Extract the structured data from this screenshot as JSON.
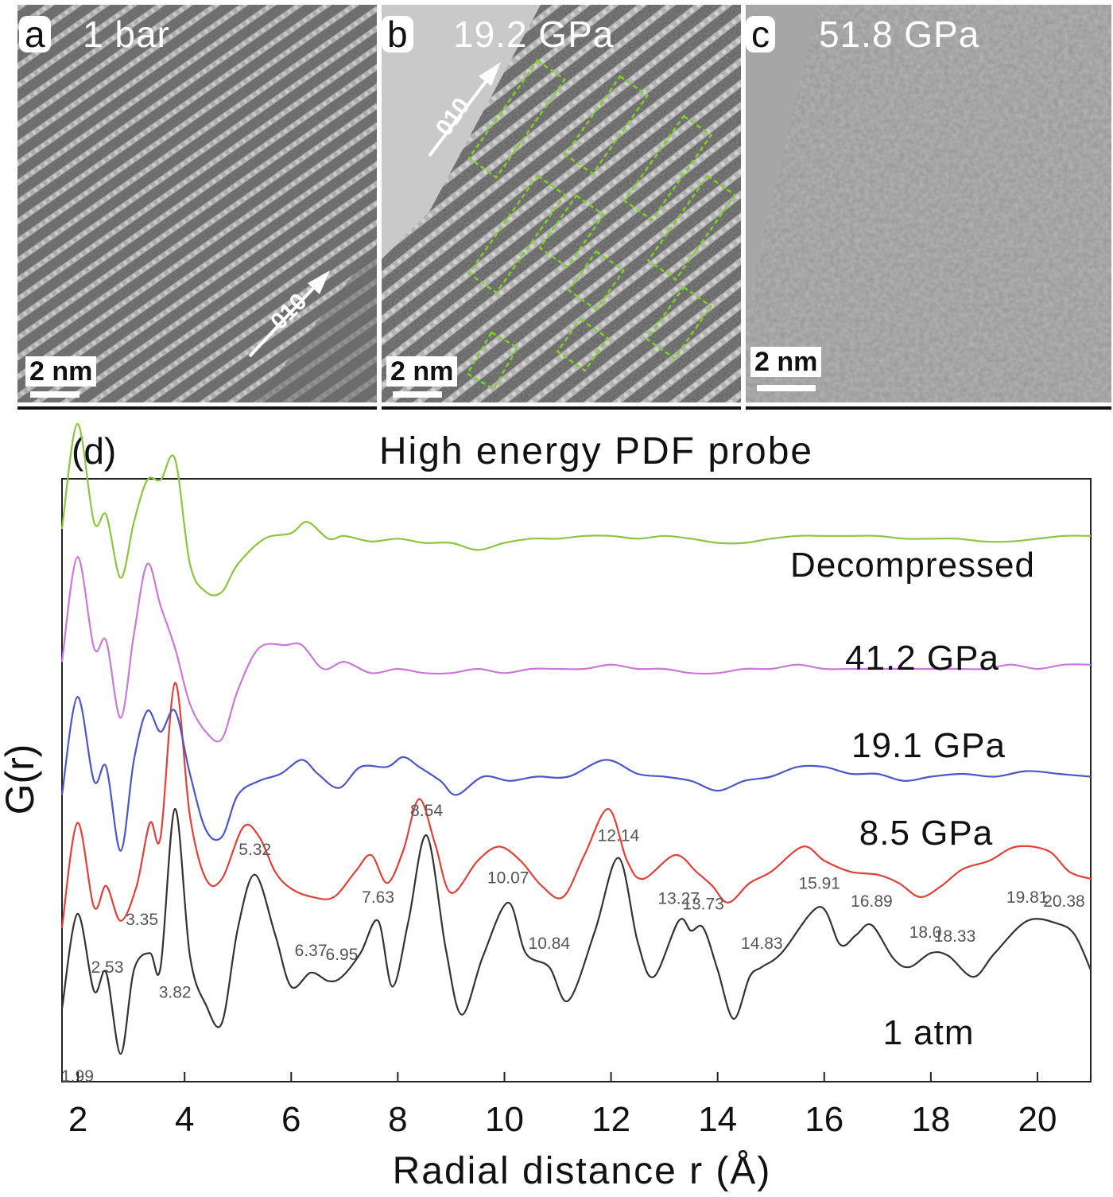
{
  "figure": {
    "panels": [
      {
        "id": "a",
        "condition": "1 bar",
        "scale_bar": "2 nm",
        "direction_label": "010"
      },
      {
        "id": "b",
        "condition": "19.2 GPa",
        "scale_bar": "2 nm",
        "direction_label": "010"
      },
      {
        "id": "c",
        "condition": "51.8 GPa",
        "scale_bar": "2 nm"
      }
    ],
    "colors": {
      "decompressed": "#8cc540",
      "p41_2": "#c87ad8",
      "p19_1": "#4b56c8",
      "p8_5": "#e0403a",
      "atm1": "#333333",
      "boxes": "#7ed321"
    }
  },
  "chart_data": {
    "type": "line",
    "panel_label": "(d)",
    "title": "High energy PDF probe",
    "xlabel": "Radial distance r (Å)",
    "ylabel": "G(r)",
    "xlim": [
      1.7,
      21.0
    ],
    "xticks": [
      "2",
      "4",
      "6",
      "8",
      "10",
      "12",
      "14",
      "16",
      "18",
      "20"
    ],
    "series": [
      {
        "name": "1 atm",
        "points": [
          [
            1.7,
            0.32
          ],
          [
            1.99,
            1.0
          ],
          [
            2.3,
            0.45
          ],
          [
            2.53,
            0.58
          ],
          [
            2.8,
            0.0
          ],
          [
            3.05,
            0.6
          ],
          [
            3.35,
            0.72
          ],
          [
            3.55,
            0.62
          ],
          [
            3.82,
            1.75
          ],
          [
            4.1,
            0.7
          ],
          [
            4.4,
            0.35
          ],
          [
            4.7,
            0.22
          ],
          [
            5.0,
            0.9
          ],
          [
            5.32,
            1.28
          ],
          [
            5.7,
            0.85
          ],
          [
            6.0,
            0.48
          ],
          [
            6.37,
            0.58
          ],
          [
            6.7,
            0.52
          ],
          [
            6.95,
            0.55
          ],
          [
            7.3,
            0.72
          ],
          [
            7.63,
            0.95
          ],
          [
            7.9,
            0.48
          ],
          [
            8.2,
            0.95
          ],
          [
            8.54,
            1.56
          ],
          [
            8.9,
            0.75
          ],
          [
            9.2,
            0.28
          ],
          [
            9.6,
            0.7
          ],
          [
            10.07,
            1.08
          ],
          [
            10.4,
            0.72
          ],
          [
            10.84,
            0.62
          ],
          [
            11.2,
            0.38
          ],
          [
            11.7,
            0.88
          ],
          [
            12.14,
            1.4
          ],
          [
            12.5,
            0.8
          ],
          [
            12.8,
            0.55
          ],
          [
            13.27,
            0.95
          ],
          [
            13.5,
            0.88
          ],
          [
            13.73,
            0.9
          ],
          [
            14.0,
            0.6
          ],
          [
            14.3,
            0.25
          ],
          [
            14.6,
            0.55
          ],
          [
            14.83,
            0.62
          ],
          [
            15.2,
            0.72
          ],
          [
            15.91,
            1.05
          ],
          [
            16.3,
            0.78
          ],
          [
            16.6,
            0.85
          ],
          [
            16.89,
            0.92
          ],
          [
            17.3,
            0.68
          ],
          [
            17.6,
            0.62
          ],
          [
            18.0,
            0.72
          ],
          [
            18.33,
            0.7
          ],
          [
            18.8,
            0.55
          ],
          [
            19.2,
            0.72
          ],
          [
            19.81,
            0.95
          ],
          [
            20.38,
            0.93
          ],
          [
            20.7,
            0.85
          ],
          [
            21.0,
            0.6
          ]
        ],
        "peak_labels": [
          {
            "text": "1.99",
            "x": 1.99,
            "y": -0.2
          },
          {
            "text": "2.53",
            "x": 2.55,
            "y": 0.58
          },
          {
            "text": "3.35",
            "x": 3.2,
            "y": 0.92
          },
          {
            "text": "3.82",
            "x": 3.82,
            "y": 0.4
          },
          {
            "text": "5.32",
            "x": 5.32,
            "y": 1.42
          },
          {
            "text": "6.37",
            "x": 6.37,
            "y": 0.7
          },
          {
            "text": "6.95",
            "x": 6.95,
            "y": 0.67
          },
          {
            "text": "7.63",
            "x": 7.63,
            "y": 1.08
          },
          {
            "text": "8.54",
            "x": 8.54,
            "y": 1.7
          },
          {
            "text": "10.07",
            "x": 10.07,
            "y": 1.22
          },
          {
            "text": "10.84",
            "x": 10.84,
            "y": 0.75
          },
          {
            "text": "12.14",
            "x": 12.14,
            "y": 1.52
          },
          {
            "text": "13.27",
            "x": 13.27,
            "y": 1.07
          },
          {
            "text": "13.73",
            "x": 13.73,
            "y": 1.03
          },
          {
            "text": "14.83",
            "x": 14.83,
            "y": 0.75
          },
          {
            "text": "15.91",
            "x": 15.91,
            "y": 1.18
          },
          {
            "text": "16.89",
            "x": 16.89,
            "y": 1.05
          },
          {
            "text": "18.0",
            "x": 17.9,
            "y": 0.83
          },
          {
            "text": "18.33",
            "x": 18.45,
            "y": 0.8
          },
          {
            "text": "19.81",
            "x": 19.81,
            "y": 1.08
          },
          {
            "text": "20.38",
            "x": 20.5,
            "y": 1.05
          }
        ]
      },
      {
        "name": "8.5 GPa",
        "points": [
          [
            1.7,
            0.9
          ],
          [
            1.99,
            1.65
          ],
          [
            2.3,
            1.05
          ],
          [
            2.53,
            1.2
          ],
          [
            2.8,
            0.95
          ],
          [
            3.1,
            1.2
          ],
          [
            3.35,
            1.65
          ],
          [
            3.55,
            1.55
          ],
          [
            3.82,
            2.65
          ],
          [
            4.1,
            1.7
          ],
          [
            4.4,
            1.25
          ],
          [
            4.7,
            1.25
          ],
          [
            5.1,
            1.62
          ],
          [
            5.4,
            1.55
          ],
          [
            5.7,
            1.3
          ],
          [
            6.0,
            1.18
          ],
          [
            6.4,
            1.12
          ],
          [
            6.8,
            1.12
          ],
          [
            7.2,
            1.3
          ],
          [
            7.5,
            1.42
          ],
          [
            7.8,
            1.22
          ],
          [
            8.1,
            1.45
          ],
          [
            8.4,
            1.82
          ],
          [
            8.7,
            1.5
          ],
          [
            9.0,
            1.15
          ],
          [
            9.5,
            1.38
          ],
          [
            9.9,
            1.48
          ],
          [
            10.3,
            1.38
          ],
          [
            10.7,
            1.2
          ],
          [
            11.1,
            1.12
          ],
          [
            11.5,
            1.42
          ],
          [
            11.95,
            1.75
          ],
          [
            12.3,
            1.38
          ],
          [
            12.6,
            1.25
          ],
          [
            13.2,
            1.42
          ],
          [
            13.6,
            1.3
          ],
          [
            13.9,
            1.2
          ],
          [
            14.2,
            1.08
          ],
          [
            14.6,
            1.22
          ],
          [
            15.0,
            1.3
          ],
          [
            15.6,
            1.48
          ],
          [
            16.0,
            1.38
          ],
          [
            16.5,
            1.3
          ],
          [
            17.0,
            1.28
          ],
          [
            17.4,
            1.22
          ],
          [
            17.8,
            1.12
          ],
          [
            18.2,
            1.2
          ],
          [
            18.6,
            1.32
          ],
          [
            19.1,
            1.38
          ],
          [
            19.6,
            1.48
          ],
          [
            20.2,
            1.45
          ],
          [
            20.6,
            1.3
          ],
          [
            21.0,
            1.25
          ]
        ]
      },
      {
        "name": "19.1 GPa",
        "points": [
          [
            1.7,
            1.85
          ],
          [
            1.99,
            2.55
          ],
          [
            2.3,
            1.95
          ],
          [
            2.53,
            2.05
          ],
          [
            2.8,
            1.45
          ],
          [
            3.05,
            2.1
          ],
          [
            3.3,
            2.45
          ],
          [
            3.55,
            2.3
          ],
          [
            3.82,
            2.45
          ],
          [
            4.1,
            2.0
          ],
          [
            4.4,
            1.6
          ],
          [
            4.7,
            1.55
          ],
          [
            5.0,
            1.85
          ],
          [
            5.4,
            1.95
          ],
          [
            5.8,
            2.0
          ],
          [
            6.2,
            2.1
          ],
          [
            6.5,
            2.0
          ],
          [
            6.9,
            1.9
          ],
          [
            7.3,
            2.05
          ],
          [
            7.8,
            2.05
          ],
          [
            8.1,
            2.12
          ],
          [
            8.4,
            2.05
          ],
          [
            8.8,
            1.95
          ],
          [
            9.1,
            1.85
          ],
          [
            9.6,
            1.98
          ],
          [
            10.1,
            1.95
          ],
          [
            10.6,
            1.98
          ],
          [
            11.2,
            1.98
          ],
          [
            11.9,
            2.1
          ],
          [
            12.5,
            2.0
          ],
          [
            13.0,
            1.98
          ],
          [
            13.5,
            1.95
          ],
          [
            14.0,
            1.88
          ],
          [
            14.5,
            1.95
          ],
          [
            15.0,
            1.98
          ],
          [
            15.5,
            2.05
          ],
          [
            16.0,
            2.05
          ],
          [
            16.5,
            2.0
          ],
          [
            17.0,
            2.0
          ],
          [
            17.5,
            1.95
          ],
          [
            18.0,
            1.98
          ],
          [
            18.6,
            2.0
          ],
          [
            19.2,
            1.98
          ],
          [
            19.8,
            2.02
          ],
          [
            20.4,
            2.0
          ],
          [
            21.0,
            1.98
          ]
        ]
      },
      {
        "name": "41.2 GPa",
        "points": [
          [
            1.7,
            2.8
          ],
          [
            1.99,
            3.55
          ],
          [
            2.3,
            2.9
          ],
          [
            2.53,
            2.95
          ],
          [
            2.8,
            2.4
          ],
          [
            3.05,
            3.0
          ],
          [
            3.3,
            3.5
          ],
          [
            3.55,
            3.2
          ],
          [
            3.82,
            2.9
          ],
          [
            4.1,
            2.5
          ],
          [
            4.4,
            2.3
          ],
          [
            4.7,
            2.25
          ],
          [
            5.0,
            2.6
          ],
          [
            5.4,
            2.9
          ],
          [
            5.9,
            2.92
          ],
          [
            6.2,
            2.92
          ],
          [
            6.6,
            2.75
          ],
          [
            7.0,
            2.8
          ],
          [
            7.5,
            2.72
          ],
          [
            8.0,
            2.75
          ],
          [
            8.5,
            2.72
          ],
          [
            9.0,
            2.72
          ],
          [
            9.5,
            2.75
          ],
          [
            10.0,
            2.72
          ],
          [
            10.5,
            2.75
          ],
          [
            11.0,
            2.75
          ],
          [
            11.5,
            2.75
          ],
          [
            12.0,
            2.78
          ],
          [
            12.5,
            2.75
          ],
          [
            13.0,
            2.75
          ],
          [
            13.5,
            2.72
          ],
          [
            14.0,
            2.72
          ],
          [
            14.5,
            2.75
          ],
          [
            15.0,
            2.75
          ],
          [
            15.5,
            2.78
          ],
          [
            16.0,
            2.75
          ],
          [
            16.5,
            2.75
          ],
          [
            17.0,
            2.75
          ],
          [
            17.5,
            2.75
          ],
          [
            18.0,
            2.75
          ],
          [
            18.5,
            2.75
          ],
          [
            19.0,
            2.75
          ],
          [
            19.5,
            2.78
          ],
          [
            20.0,
            2.75
          ],
          [
            20.5,
            2.78
          ],
          [
            21.0,
            2.78
          ]
        ]
      },
      {
        "name": "Decompressed",
        "points": [
          [
            1.7,
            3.75
          ],
          [
            1.99,
            4.5
          ],
          [
            2.3,
            3.8
          ],
          [
            2.53,
            3.85
          ],
          [
            2.8,
            3.4
          ],
          [
            3.05,
            3.8
          ],
          [
            3.3,
            4.1
          ],
          [
            3.55,
            4.1
          ],
          [
            3.82,
            4.25
          ],
          [
            4.1,
            3.5
          ],
          [
            4.4,
            3.3
          ],
          [
            4.7,
            3.3
          ],
          [
            5.0,
            3.5
          ],
          [
            5.5,
            3.68
          ],
          [
            6.0,
            3.72
          ],
          [
            6.3,
            3.8
          ],
          [
            6.7,
            3.68
          ],
          [
            7.0,
            3.7
          ],
          [
            7.5,
            3.66
          ],
          [
            8.0,
            3.68
          ],
          [
            8.5,
            3.65
          ],
          [
            9.0,
            3.65
          ],
          [
            9.5,
            3.6
          ],
          [
            10.0,
            3.65
          ],
          [
            10.5,
            3.68
          ],
          [
            11.0,
            3.68
          ],
          [
            11.5,
            3.7
          ],
          [
            12.0,
            3.7
          ],
          [
            12.5,
            3.68
          ],
          [
            13.0,
            3.7
          ],
          [
            13.5,
            3.68
          ],
          [
            14.0,
            3.65
          ],
          [
            14.5,
            3.65
          ],
          [
            15.0,
            3.68
          ],
          [
            15.5,
            3.7
          ],
          [
            16.0,
            3.7
          ],
          [
            16.5,
            3.7
          ],
          [
            17.0,
            3.7
          ],
          [
            17.5,
            3.68
          ],
          [
            18.0,
            3.68
          ],
          [
            18.5,
            3.68
          ],
          [
            19.0,
            3.66
          ],
          [
            19.5,
            3.66
          ],
          [
            20.0,
            3.68
          ],
          [
            20.5,
            3.7
          ],
          [
            21.0,
            3.7
          ]
        ]
      }
    ]
  }
}
